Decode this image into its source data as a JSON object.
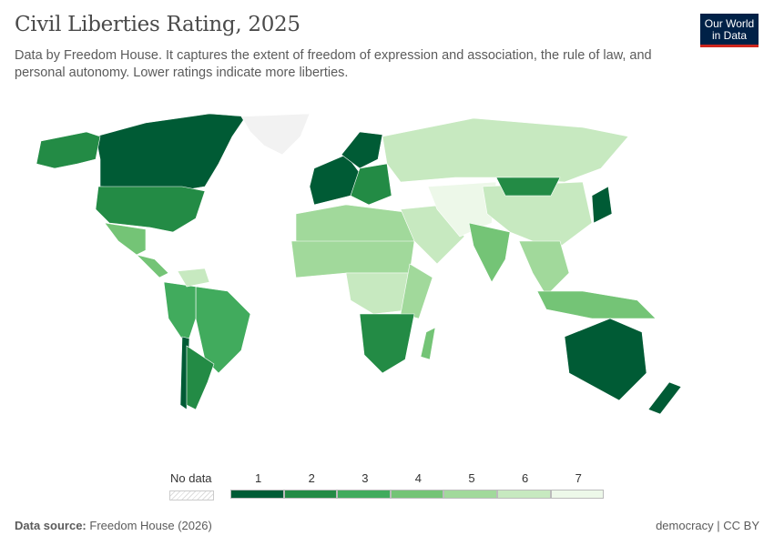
{
  "title": "Civil Liberties Rating, 2025",
  "subtitle": "Data by Freedom House. It captures the extent of freedom of expression and association, the rule of law, and personal autonomy. Lower ratings indicate more liberties.",
  "logo": {
    "line1": "Our World",
    "line2": "in Data"
  },
  "legend": {
    "no_data": "No data",
    "bins": [
      {
        "label": "1",
        "color": "#005b35"
      },
      {
        "label": "2",
        "color": "#238b45"
      },
      {
        "label": "3",
        "color": "#41ab5d"
      },
      {
        "label": "4",
        "color": "#74c476"
      },
      {
        "label": "5",
        "color": "#a1d99b"
      },
      {
        "label": "6",
        "color": "#c7e9c0"
      },
      {
        "label": "7",
        "color": "#edf8e9"
      }
    ]
  },
  "footer": {
    "source_label": "Data source:",
    "source": "Freedom House (2026)",
    "right": "democracy | CC BY"
  },
  "chart_data": {
    "type": "choropleth",
    "scale": [
      1,
      7
    ],
    "regions": [
      {
        "name": "Canada",
        "value": 1
      },
      {
        "name": "Alaska",
        "value": 2
      },
      {
        "name": "Greenland",
        "value": null
      },
      {
        "name": "United States",
        "value": 2
      },
      {
        "name": "Mexico",
        "value": 4
      },
      {
        "name": "Central America",
        "value": 4
      },
      {
        "name": "Brazil",
        "value": 3
      },
      {
        "name": "Andean South America",
        "value": 3
      },
      {
        "name": "Chile",
        "value": 1
      },
      {
        "name": "Argentina",
        "value": 2
      },
      {
        "name": "Venezuela",
        "value": 6
      },
      {
        "name": "Western Europe",
        "value": 1
      },
      {
        "name": "Eastern Europe",
        "value": 2
      },
      {
        "name": "Russia",
        "value": 6
      },
      {
        "name": "North Africa",
        "value": 5
      },
      {
        "name": "Sahel",
        "value": 5
      },
      {
        "name": "Central Africa",
        "value": 6
      },
      {
        "name": "East Africa",
        "value": 5
      },
      {
        "name": "Southern Africa",
        "value": 2
      },
      {
        "name": "Madagascar",
        "value": 4
      },
      {
        "name": "Middle East",
        "value": 6
      },
      {
        "name": "Iran and Central Asia",
        "value": 7
      },
      {
        "name": "India",
        "value": 4
      },
      {
        "name": "China",
        "value": 6
      },
      {
        "name": "Mongolia",
        "value": 2
      },
      {
        "name": "Japan",
        "value": 1
      },
      {
        "name": "Southeast Asia",
        "value": 5
      },
      {
        "name": "Indonesia",
        "value": 4
      },
      {
        "name": "Australia",
        "value": 1
      },
      {
        "name": "New Zealand",
        "value": 1
      },
      {
        "name": "Scandinavia",
        "value": 1
      }
    ]
  }
}
